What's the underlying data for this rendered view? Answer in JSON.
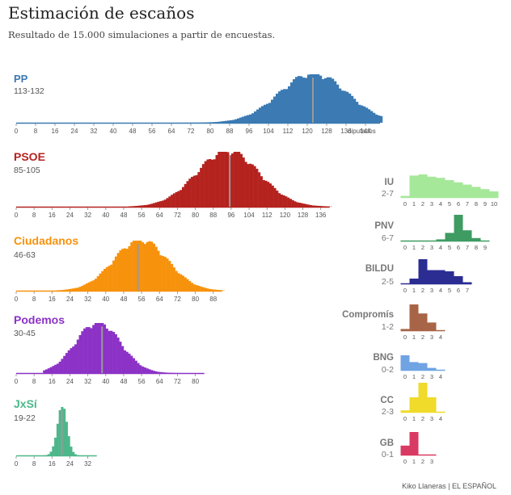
{
  "header": {
    "title": "Estimación de escaños",
    "subtitle": "Resultado de 15.000 simulaciones a partir de encuestas."
  },
  "footer": {
    "credit": "Kiko Llaneras  |  EL ESPAÑOL"
  },
  "axis_unit_label": "diputados",
  "chart_data": [
    {
      "type": "bar",
      "name": "PP",
      "range_label": "113-132",
      "color": "#3b7ab3",
      "median": 122,
      "xticks": [
        0,
        8,
        16,
        24,
        32,
        40,
        48,
        56,
        64,
        72,
        80,
        88,
        96,
        104,
        112,
        120,
        128,
        136,
        144
      ],
      "xlim": [
        0,
        150
      ],
      "distribution": {
        "center": 122,
        "spread": 14,
        "from": 56,
        "to": 150
      }
    },
    {
      "type": "bar",
      "name": "PSOE",
      "range_label": "85-105",
      "color": "#b5231f",
      "median": 95,
      "xticks": [
        0,
        8,
        16,
        24,
        32,
        40,
        48,
        56,
        64,
        72,
        80,
        88,
        96,
        104,
        112,
        120,
        128,
        136
      ],
      "xlim": [
        0,
        140
      ],
      "distribution": {
        "center": 94,
        "spread": 14,
        "from": 50,
        "to": 140
      }
    },
    {
      "type": "bar",
      "name": "Ciudadanos",
      "range_label": "46-63",
      "color": "#f7920c",
      "median": 54,
      "xticks": [
        0,
        8,
        16,
        24,
        32,
        40,
        48,
        56,
        64,
        72,
        80,
        88
      ],
      "xlim": [
        0,
        92
      ],
      "distribution": {
        "center": 55,
        "spread": 12,
        "from": 18,
        "to": 92
      }
    },
    {
      "type": "bar",
      "name": "Podemos",
      "range_label": "30-45",
      "color": "#8c32c6",
      "median": 38,
      "xticks": [
        0,
        8,
        16,
        24,
        32,
        40,
        48,
        56,
        64,
        72,
        80
      ],
      "xlim": [
        0,
        84
      ],
      "distribution": {
        "center": 36,
        "spread": 10,
        "from": 12,
        "to": 72
      }
    },
    {
      "type": "bar",
      "name": "JxSí",
      "range_label": "19-22",
      "color": "#4cb78a",
      "median": 20,
      "xticks": [
        0,
        8,
        16,
        24,
        32
      ],
      "xlim": [
        0,
        36
      ],
      "distribution": {
        "center": 20,
        "spread": 2.2,
        "from": 12,
        "to": 28
      }
    },
    {
      "type": "bar",
      "name": "IU",
      "range_label": "2-7",
      "color": "#a6e89a",
      "categories": [
        0,
        1,
        2,
        3,
        4,
        5,
        6,
        7,
        8,
        9,
        10
      ],
      "values": [
        0.05,
        0.95,
        1.0,
        0.9,
        0.85,
        0.75,
        0.65,
        0.55,
        0.45,
        0.35,
        0.25
      ]
    },
    {
      "type": "bar",
      "name": "PNV",
      "range_label": "6-7",
      "color": "#3e9b62",
      "categories": [
        0,
        1,
        2,
        3,
        4,
        5,
        6,
        7,
        8,
        9
      ],
      "values": [
        0,
        0,
        0,
        0,
        0.05,
        0.3,
        1.0,
        0.4,
        0.1,
        0
      ]
    },
    {
      "type": "bar",
      "name": "BILDU",
      "range_label": "2-5",
      "color": "#2b2d93",
      "categories": [
        0,
        1,
        2,
        3,
        4,
        5,
        6,
        7
      ],
      "values": [
        0,
        0.2,
        1.0,
        0.55,
        0.55,
        0.5,
        0.3,
        0.05
      ]
    },
    {
      "type": "bar",
      "name": "Compromís",
      "range_label": "1-2",
      "color": "#a86447",
      "categories": [
        0,
        1,
        2,
        3,
        4
      ],
      "values": [
        0.05,
        1.0,
        0.65,
        0.3,
        0
      ]
    },
    {
      "type": "bar",
      "name": "BNG",
      "range_label": "0-2",
      "color": "#6fa3e3",
      "categories": [
        0,
        1,
        2,
        3,
        4
      ],
      "values": [
        0.75,
        0.4,
        0.35,
        0.1,
        0
      ]
    },
    {
      "type": "bar",
      "name": "CC",
      "range_label": "2-3",
      "color": "#f0da2a",
      "categories": [
        0,
        1,
        2,
        3,
        4
      ],
      "values": [
        0.05,
        0.5,
        1.0,
        0.5,
        0
      ]
    },
    {
      "type": "bar",
      "name": "GB",
      "range_label": "0-1",
      "color": "#d93a63",
      "categories": [
        0,
        1,
        2,
        3
      ],
      "values": [
        0.4,
        1.0,
        0,
        0
      ]
    }
  ]
}
